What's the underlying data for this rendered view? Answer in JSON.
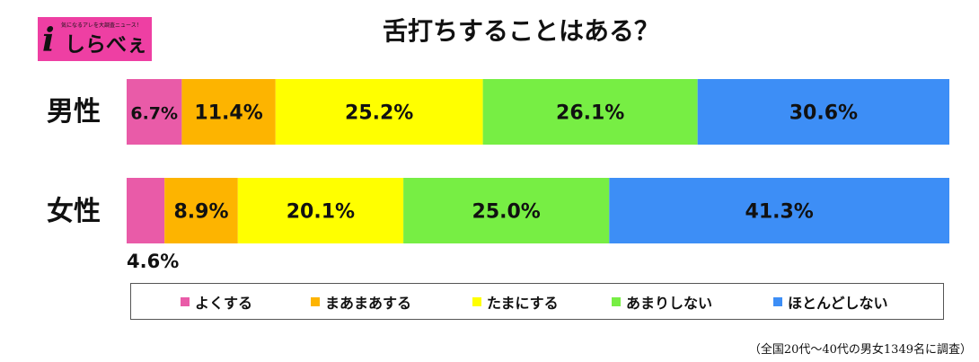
{
  "logo": {
    "tagline": "気になるアレを大調査ニュース！",
    "mark": "i",
    "name": "しらべぇ"
  },
  "chart_data": {
    "type": "bar",
    "orientation": "horizontal-stacked-100",
    "title": "舌打ちすることはある？",
    "categories": [
      "男性",
      "女性"
    ],
    "series": [
      {
        "name": "よくする",
        "color": "#e95ba8",
        "values": [
          6.7,
          4.6
        ]
      },
      {
        "name": "まあまあする",
        "color": "#fdb400",
        "values": [
          11.4,
          8.9
        ]
      },
      {
        "name": "たまにする",
        "color": "#ffff00",
        "values": [
          25.2,
          20.1
        ]
      },
      {
        "name": "あまりしない",
        "color": "#77ee44",
        "values": [
          26.1,
          25.0
        ]
      },
      {
        "name": "ほとんどしない",
        "color": "#3d8ef6",
        "values": [
          30.6,
          41.3
        ]
      }
    ],
    "data_labels": [
      [
        "6.7%",
        "11.4%",
        "25.2%",
        "26.1%",
        "30.6%"
      ],
      [
        "4.6%",
        "8.9%",
        "20.1%",
        "25.0%",
        "41.3%"
      ]
    ],
    "legend_position": "bottom",
    "grid": false,
    "xlim": [
      0,
      100
    ]
  },
  "footnote": "（全国20代～40代の男女1349名に調査）"
}
